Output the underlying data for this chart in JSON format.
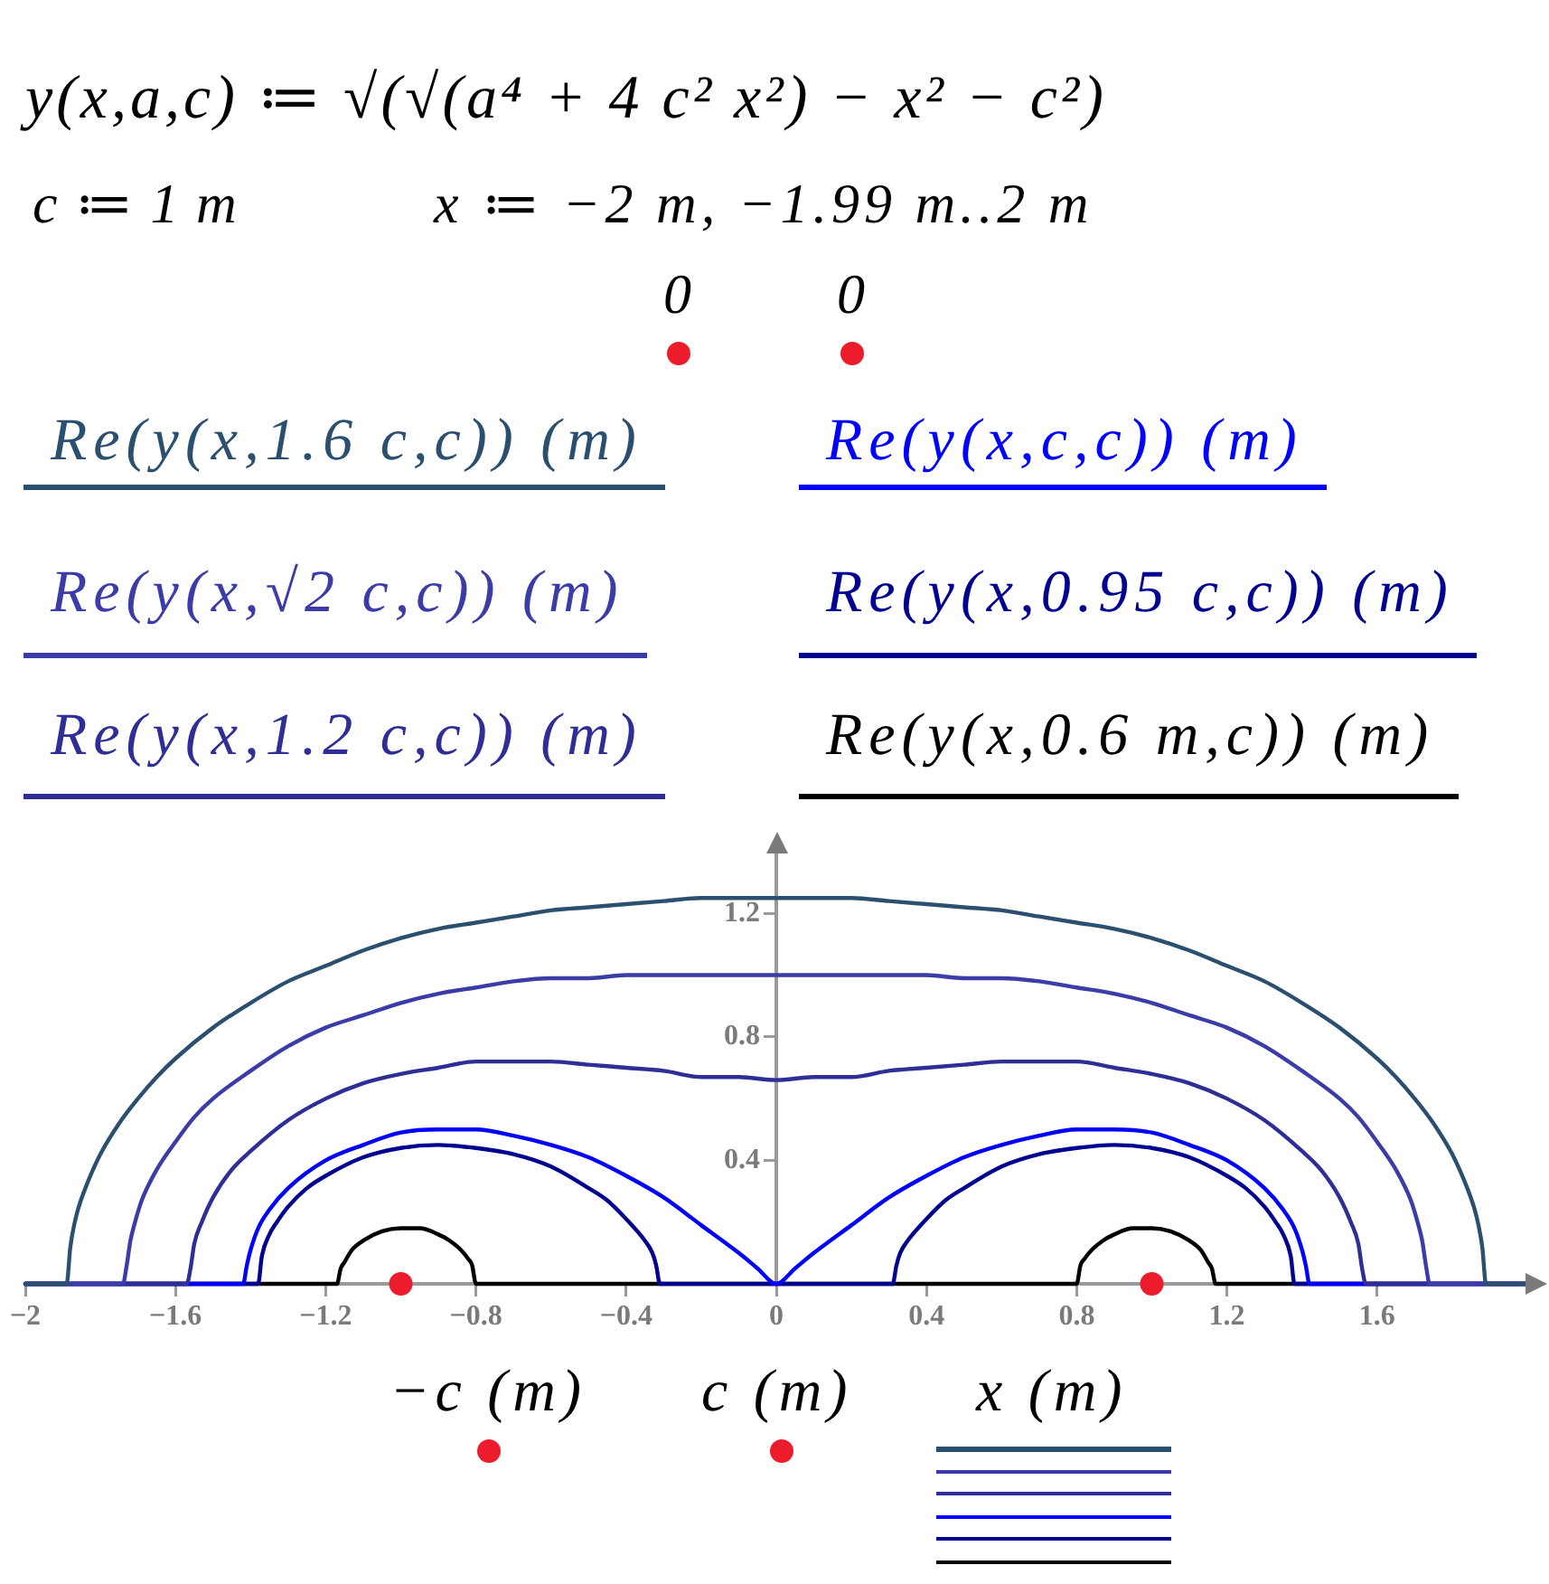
{
  "chart_data": {
    "type": "line",
    "annotations": [
      "y(x,a,c) ≔ √(√(a⁴ + 4 c² x²) − x² − c²)",
      "c ≔ 1 m",
      "x ≔ −2 m, −1.99 m..2 m",
      "0",
      "0",
      "−c (m)",
      "c (m)"
    ],
    "xlabel": "x (m)",
    "legend": "top",
    "xlim": [
      -2,
      2
    ],
    "xticks": [
      -2,
      -1.6,
      -1.2,
      -0.8,
      -0.4,
      0,
      0.4,
      0.8,
      1.2,
      1.6
    ],
    "ylim": [
      0,
      1.4
    ],
    "yticks": [
      {
        "value": 0,
        "label": null
      },
      0.4,
      0.8,
      1.2
    ],
    "series": [
      {
        "type": "scatter",
        "marker": "circle",
        "color": "#ec1c2c",
        "x": [
          -1
        ],
        "values": [
          0
        ]
      },
      {
        "type": "scatter",
        "marker": "circle",
        "color": "#ec1c2c",
        "x": [
          1
        ],
        "values": [
          0
        ]
      },
      {
        "name": "Re(y(x,1.6 c,c)) (m)",
        "color": "#2b4f6f",
        "x": [
          -2,
          -1.89,
          -1.88,
          -1.87,
          -1.86,
          -1.84,
          -1.8,
          -1.75,
          -1.7,
          -1.65,
          -1.6,
          -1.5,
          -1.4,
          -1.3,
          -1.2,
          -1.1,
          -1,
          -0.9,
          -0.8,
          -0.7,
          -0.6,
          -0.5,
          -0.4,
          -0.3,
          -0.2,
          -0.1,
          0,
          0.1,
          0.2,
          0.3,
          0.4,
          0.5,
          0.6,
          0.7,
          0.8,
          0.9,
          1,
          1.1,
          1.2,
          1.3,
          1.4,
          1.5,
          1.6,
          1.65,
          1.7,
          1.75,
          1.8,
          1.84,
          1.86,
          1.87,
          1.88,
          1.89,
          2
        ],
        "values": [
          0,
          0,
          0.12,
          0.19,
          0.24,
          0.31,
          0.42,
          0.52,
          0.6,
          0.67,
          0.73,
          0.83,
          0.91,
          0.98,
          1.03,
          1.08,
          1.12,
          1.15,
          1.17,
          1.19,
          1.21,
          1.22,
          1.23,
          1.24,
          1.25,
          1.25,
          1.25,
          1.25,
          1.25,
          1.24,
          1.23,
          1.22,
          1.21,
          1.19,
          1.17,
          1.15,
          1.12,
          1.08,
          1.03,
          0.98,
          0.91,
          0.83,
          0.73,
          0.67,
          0.6,
          0.52,
          0.42,
          0.31,
          0.24,
          0.19,
          0.12,
          0,
          0
        ]
      },
      {
        "name": "Re(y(x,√2 c,c)) (m)",
        "color": "#3c3ca8",
        "x": [
          -2,
          -1.74,
          -1.73,
          -1.72,
          -1.71,
          -1.69,
          -1.65,
          -1.6,
          -1.55,
          -1.5,
          -1.4,
          -1.3,
          -1.2,
          -1.1,
          -1,
          -0.9,
          -0.8,
          -0.7,
          -0.6,
          -0.5,
          -0.4,
          -0.3,
          -0.2,
          -0.1,
          0,
          0.1,
          0.2,
          0.3,
          0.4,
          0.5,
          0.6,
          0.7,
          0.8,
          0.9,
          1,
          1.1,
          1.2,
          1.3,
          1.4,
          1.5,
          1.55,
          1.6,
          1.65,
          1.69,
          1.71,
          1.72,
          1.73,
          1.74,
          2
        ],
        "values": [
          0,
          0,
          0.06,
          0.14,
          0.19,
          0.27,
          0.37,
          0.46,
          0.54,
          0.6,
          0.69,
          0.77,
          0.83,
          0.87,
          0.91,
          0.94,
          0.96,
          0.98,
          0.99,
          0.99,
          1,
          1,
          1,
          1,
          1,
          1,
          1,
          1,
          1,
          0.99,
          0.99,
          0.98,
          0.96,
          0.94,
          0.91,
          0.87,
          0.83,
          0.77,
          0.69,
          0.6,
          0.54,
          0.46,
          0.37,
          0.27,
          0.19,
          0.14,
          0.06,
          0,
          0
        ]
      },
      {
        "name": "Re(y(x,1.2 c,c)) (m)",
        "color": "#2e2e96",
        "x": [
          -2,
          -1.57,
          -1.56,
          -1.55,
          -1.53,
          -1.5,
          -1.45,
          -1.4,
          -1.3,
          -1.2,
          -1.1,
          -1,
          -0.9,
          -0.8,
          -0.7,
          -0.6,
          -0.5,
          -0.4,
          -0.3,
          -0.2,
          -0.1,
          0,
          0.1,
          0.2,
          0.3,
          0.4,
          0.5,
          0.6,
          0.7,
          0.8,
          0.9,
          1,
          1.1,
          1.2,
          1.3,
          1.4,
          1.45,
          1.5,
          1.53,
          1.55,
          1.56,
          1.57,
          2
        ],
        "values": [
          0,
          0,
          0.05,
          0.13,
          0.2,
          0.28,
          0.37,
          0.43,
          0.53,
          0.6,
          0.65,
          0.68,
          0.7,
          0.72,
          0.72,
          0.72,
          0.71,
          0.7,
          0.69,
          0.67,
          0.67,
          0.66,
          0.67,
          0.67,
          0.69,
          0.7,
          0.71,
          0.72,
          0.72,
          0.72,
          0.7,
          0.68,
          0.65,
          0.6,
          0.53,
          0.43,
          0.37,
          0.28,
          0.2,
          0.13,
          0.05,
          0,
          0
        ]
      },
      {
        "name": "Re(y(x,c,c)) (m)",
        "color": "#0000ff",
        "x": [
          -2,
          -1.42,
          -1.41,
          -1.4,
          -1.38,
          -1.35,
          -1.3,
          -1.2,
          -1.1,
          -1,
          -0.9,
          -0.8,
          -0.7,
          -0.6,
          -0.5,
          -0.4,
          -0.3,
          -0.2,
          -0.1,
          -0.05,
          0,
          0.05,
          0.1,
          0.2,
          0.3,
          0.4,
          0.5,
          0.6,
          0.7,
          0.8,
          0.9,
          1,
          1.1,
          1.2,
          1.3,
          1.35,
          1.38,
          1.4,
          1.41,
          1.42,
          2
        ],
        "values": [
          0,
          0,
          0.06,
          0.11,
          0.18,
          0.24,
          0.31,
          0.4,
          0.45,
          0.49,
          0.5,
          0.5,
          0.48,
          0.45,
          0.41,
          0.35,
          0.28,
          0.19,
          0.1,
          0.05,
          0,
          0.05,
          0.1,
          0.19,
          0.28,
          0.35,
          0.41,
          0.45,
          0.48,
          0.5,
          0.5,
          0.49,
          0.45,
          0.4,
          0.31,
          0.24,
          0.18,
          0.11,
          0.06,
          0,
          0
        ]
      },
      {
        "name": "Re(y(x,0.95 c,c)) (m)",
        "color": "#000090",
        "x": [
          -2,
          -1.38,
          -1.37,
          -1.35,
          -1.33,
          -1.3,
          -1.25,
          -1.2,
          -1.1,
          -1,
          -0.9,
          -0.8,
          -0.7,
          -0.6,
          -0.5,
          -0.45,
          -0.4,
          -0.35,
          -0.33,
          -0.32,
          -0.31,
          0.31,
          0.32,
          0.33,
          0.35,
          0.4,
          0.45,
          0.5,
          0.6,
          0.7,
          0.8,
          0.9,
          1,
          1.1,
          1.2,
          1.25,
          1.3,
          1.33,
          1.35,
          1.37,
          1.38,
          2
        ],
        "values": [
          0,
          0,
          0.09,
          0.16,
          0.2,
          0.25,
          0.31,
          0.35,
          0.41,
          0.44,
          0.45,
          0.44,
          0.42,
          0.38,
          0.31,
          0.27,
          0.21,
          0.14,
          0.1,
          0.06,
          0,
          0,
          0.06,
          0.1,
          0.14,
          0.21,
          0.27,
          0.31,
          0.38,
          0.42,
          0.44,
          0.45,
          0.44,
          0.41,
          0.35,
          0.31,
          0.25,
          0.2,
          0.16,
          0.09,
          0,
          0
        ]
      },
      {
        "name": "Re(y(x,0.6 m,c)) (m)",
        "color": "#000000",
        "x": [
          -2,
          -1.17,
          -1.16,
          -1.15,
          -1.13,
          -1.1,
          -1.05,
          -1,
          -0.95,
          -0.9,
          -0.87,
          -0.84,
          -0.82,
          -0.81,
          -0.8,
          0.8,
          0.81,
          0.82,
          0.84,
          0.87,
          0.9,
          0.95,
          1,
          1.05,
          1.1,
          1.13,
          1.15,
          1.16,
          1.17,
          2
        ],
        "values": [
          0,
          0,
          0.05,
          0.07,
          0.11,
          0.14,
          0.17,
          0.18,
          0.18,
          0.16,
          0.14,
          0.11,
          0.08,
          0.06,
          0,
          0,
          0.06,
          0.08,
          0.11,
          0.14,
          0.16,
          0.18,
          0.18,
          0.17,
          0.14,
          0.11,
          0.07,
          0.05,
          0,
          0
        ]
      }
    ]
  }
}
